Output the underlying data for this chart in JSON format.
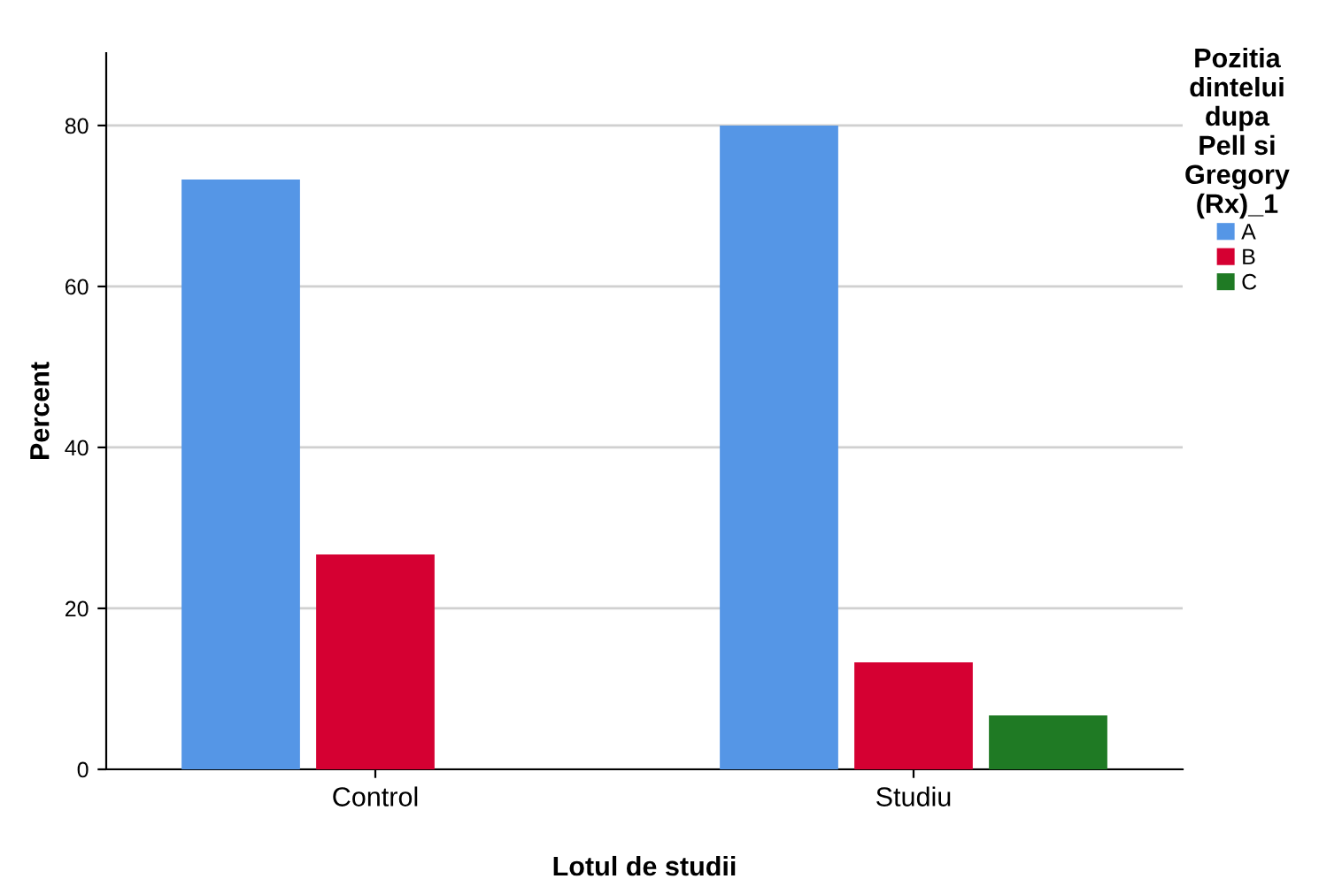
{
  "chart_data": {
    "type": "bar",
    "xlabel": "Lotul de studii",
    "ylabel": "Percent",
    "legend_title": "Pozitia\ndintelui\ndupa\nPell si\nGregory\n(Rx)_1",
    "categories": [
      "Control",
      "Studiu"
    ],
    "series": [
      {
        "name": "A",
        "color": "#5596e6",
        "values": [
          73.3,
          80.0
        ]
      },
      {
        "name": "B",
        "color": "#d50032",
        "values": [
          26.7,
          13.3
        ]
      },
      {
        "name": "C",
        "color": "#1f7a24",
        "values": [
          null,
          6.7
        ]
      }
    ],
    "ylim": [
      0,
      89
    ],
    "yticks": [
      0,
      20,
      40,
      60,
      80
    ],
    "grid": "y",
    "legend": "right"
  }
}
